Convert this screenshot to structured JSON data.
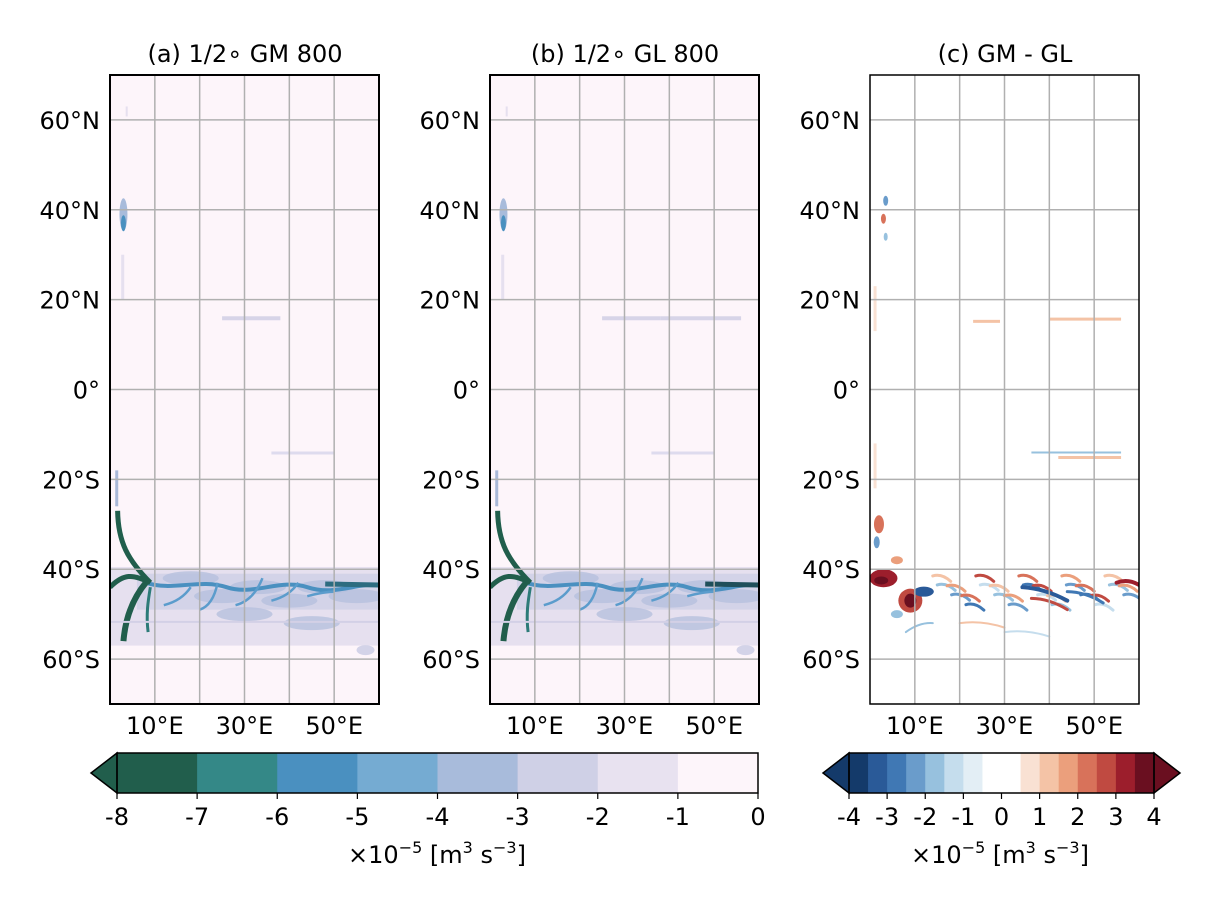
{
  "chart_data": [
    {
      "type": "heatmap",
      "panel": "a",
      "title": "(a) 1/2$^\\circ$ GM 800",
      "title_display": "(a) 1/2∘  GM 800",
      "x_ticklabels": [
        "10°E",
        "30°E",
        "50°E"
      ],
      "y_ticklabels": [
        "60°N",
        "40°N",
        "20°N",
        "0°",
        "20°S",
        "40°S",
        "60°S"
      ],
      "lon_range": [
        0,
        60
      ],
      "lat_range": [
        -70,
        70
      ],
      "grid": true,
      "colormap": "PuBuGn_r",
      "features": [
        {
          "kind": "western-boundary-jet",
          "lon": 2,
          "lat": [
            -56,
            -18
          ],
          "value": -8
        },
        {
          "kind": "retroflection",
          "lon": [
            0,
            8
          ],
          "lat": [
            -46,
            -40
          ],
          "value": -8
        },
        {
          "kind": "zonal-band",
          "lon": [
            0,
            60
          ],
          "lat": [
            -56,
            -40
          ],
          "value": -3
        },
        {
          "kind": "zonal-jet",
          "lon": [
            8,
            60
          ],
          "lat": [
            -46,
            -43
          ],
          "value": -5
        },
        {
          "kind": "boundary-current",
          "lon": 3,
          "lat": [
            34,
            44
          ],
          "value": -4
        },
        {
          "kind": "thin-band",
          "lon": [
            25,
            38
          ],
          "lat": [
            16,
            16
          ],
          "value": -2
        },
        {
          "kind": "thin-band",
          "lon": [
            32,
            50
          ],
          "lat": [
            -14,
            -14
          ],
          "value": -2
        }
      ]
    },
    {
      "type": "heatmap",
      "panel": "b",
      "title": "(b) 1/2$^\\circ$ GL 800",
      "title_display": "(b) 1/2∘  GL 800",
      "x_ticklabels": [
        "10°E",
        "30°E",
        "50°E"
      ],
      "y_ticklabels": [
        "60°N",
        "40°N",
        "20°N",
        "0°",
        "20°S",
        "40°S",
        "60°S"
      ],
      "lon_range": [
        0,
        60
      ],
      "lat_range": [
        -70,
        70
      ],
      "grid": true,
      "colormap": "PuBuGn_r",
      "features": [
        {
          "kind": "western-boundary-jet",
          "lon": 2,
          "lat": [
            -56,
            -18
          ],
          "value": -8
        },
        {
          "kind": "retroflection",
          "lon": [
            0,
            8
          ],
          "lat": [
            -46,
            -40
          ],
          "value": -8
        },
        {
          "kind": "zonal-band",
          "lon": [
            0,
            60
          ],
          "lat": [
            -56,
            -40
          ],
          "value": -3
        },
        {
          "kind": "zonal-jet",
          "lon": [
            8,
            60
          ],
          "lat": [
            -46,
            -43
          ],
          "value": -6
        },
        {
          "kind": "boundary-current",
          "lon": 3,
          "lat": [
            34,
            44
          ],
          "value": -4
        },
        {
          "kind": "thin-band",
          "lon": [
            20,
            56
          ],
          "lat": [
            16,
            16
          ],
          "value": -2
        },
        {
          "kind": "thin-band",
          "lon": [
            35,
            55
          ],
          "lat": [
            -14,
            -14
          ],
          "value": -2
        }
      ]
    },
    {
      "type": "heatmap",
      "panel": "c",
      "title": "(c) GM - GL",
      "x_ticklabels": [
        "10°E",
        "30°E",
        "50°E"
      ],
      "y_ticklabels": [
        "60°N",
        "40°N",
        "20°N",
        "0°",
        "20°S",
        "40°S",
        "60°S"
      ],
      "lon_range": [
        0,
        60
      ],
      "lat_range": [
        -70,
        70
      ],
      "grid": true,
      "colormap": "RdBu_r",
      "features": [
        {
          "kind": "dipole",
          "lon": [
            0,
            10
          ],
          "lat": [
            -56,
            -26
          ],
          "value_range": [
            -3,
            4
          ]
        },
        {
          "kind": "eddy-streaks",
          "lon": [
            10,
            60
          ],
          "lat": [
            -54,
            -41
          ],
          "value_range": [
            -3,
            2
          ]
        },
        {
          "kind": "boundary-current",
          "lon": 3,
          "lat": [
            30,
            44
          ],
          "value_range": [
            -2,
            2
          ]
        },
        {
          "kind": "thin-band",
          "lon": [
            25,
            55
          ],
          "lat": [
            16,
            16
          ],
          "value_range": [
            -1,
            1
          ]
        },
        {
          "kind": "thin-band",
          "lon": [
            35,
            55
          ],
          "lat": [
            -14,
            -14
          ],
          "value_range": [
            -1,
            1
          ]
        }
      ]
    }
  ],
  "colorbars": {
    "left": {
      "ticks": [
        "-8",
        "-7",
        "-6",
        "-5",
        "-4",
        "-3",
        "-2",
        "-1",
        "0"
      ],
      "label": "×10$^{-5}$ [m$^3$ s$^{-3}$]",
      "label_parts": {
        "pre": "×10",
        "exp1": "−5",
        "mid": " [m",
        "exp2": "3",
        "mid2": " s",
        "exp3": "−3",
        "post": "]"
      },
      "extend": "min",
      "colors": [
        "#215e4c",
        "#348887",
        "#4a90c0",
        "#75abd2",
        "#a8bbdb",
        "#cfd0e6",
        "#e8e2f0",
        "#fdf5fa"
      ]
    },
    "right": {
      "ticks": [
        "-4",
        "-3",
        "-2",
        "-1",
        "0",
        "1",
        "2",
        "3",
        "4"
      ],
      "label": "×10$^{-5}$ [m$^3$ s$^{-3}$]",
      "label_parts": {
        "pre": "×10",
        "exp1": "−5",
        "mid": " [m",
        "exp2": "3",
        "mid2": " s",
        "exp3": "−3",
        "post": "]"
      },
      "extend": "both",
      "colors": [
        "#143a6a",
        "#2a5a98",
        "#4078b4",
        "#6a9ccb",
        "#97c1de",
        "#c5dded",
        "#e3eef5",
        "#ffffff",
        "#ffffff",
        "#f9e1d3",
        "#f4c3a6",
        "#eb9f7c",
        "#d8725a",
        "#c04a41",
        "#9c1e2c",
        "#6a0f20"
      ]
    }
  }
}
